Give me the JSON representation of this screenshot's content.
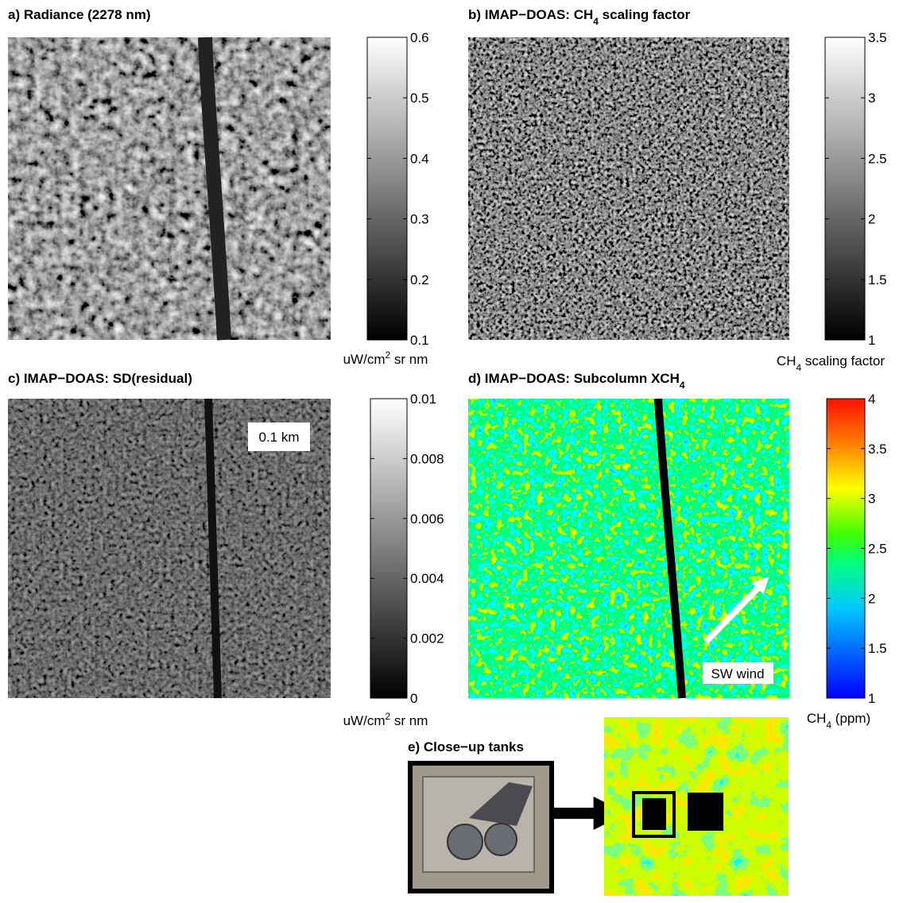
{
  "panels": [
    {
      "title": "a) Radiance (2278 nm)",
      "colorbar": {
        "clim": [
          0.1,
          0.6
        ],
        "ticks": [
          0.1,
          0.2,
          0.3,
          0.4,
          0.5,
          0.6
        ],
        "label": {
          "text": "uW/cm",
          "sup": "2",
          "after": " sr nm"
        }
      }
    },
    {
      "title": {
        "text": "b) IMAP−DOAS: CH",
        "sub": "4",
        "after": " scaling factor"
      },
      "colorbar": {
        "clim": [
          1,
          3.5
        ],
        "ticks": [
          1,
          1.5,
          2,
          2.5,
          3,
          3.5
        ],
        "label": {
          "text": "CH",
          "sub": "4",
          "after": " scaling factor"
        }
      }
    },
    {
      "title": "c) IMAP−DOAS: SD(residual)",
      "colorbar": {
        "clim": [
          0,
          0.01
        ],
        "ticks": [
          0,
          0.002,
          0.004,
          0.006,
          0.008,
          0.01
        ],
        "label": {
          "text": "uW/cm",
          "sup": "2",
          "after": " sr nm"
        }
      }
    },
    {
      "title": {
        "text": "d) IMAP−DOAS: Subcolumn XCH",
        "sub": "4"
      },
      "colorbar": {
        "clim": [
          1,
          4
        ],
        "ticks": [
          1,
          1.5,
          2,
          2.5,
          3,
          3.5,
          4
        ],
        "label": {
          "text": "CH",
          "sub": "4",
          "after": " (ppm)"
        }
      }
    },
    {
      "title": "e) Close−up tanks"
    }
  ],
  "annotations": {
    "scale": "0.1 km",
    "wind": "SW wind"
  }
}
